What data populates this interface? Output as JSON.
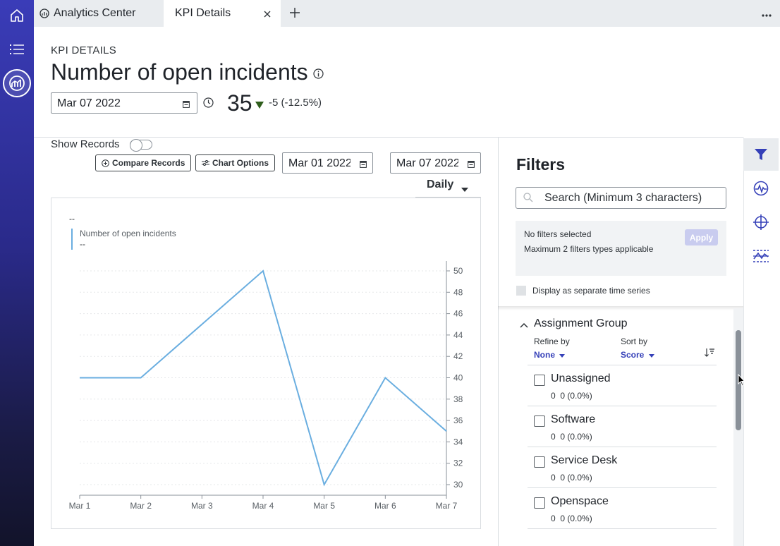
{
  "tabs": [
    {
      "label": "Analytics Center",
      "icon": "analytics-icon"
    },
    {
      "label": "KPI Details",
      "close_icon": "close-icon"
    }
  ],
  "header": {
    "section_label": "KPI DETAILS",
    "title": "Number of open incidents",
    "date": "Mar 07 2022",
    "value": "35",
    "delta": "-5 (-12.5%)",
    "trend_color": "#2e5e1c"
  },
  "toolbar": {
    "show_records": "Show Records",
    "compare_records": "Compare Records",
    "chart_options": "Chart Options",
    "range_start": "Mar 01 2022",
    "range_end": "Mar 07 2022",
    "interval": "Daily"
  },
  "chart_data": {
    "type": "line",
    "title": "--",
    "legend": [
      {
        "name": "Number of open incidents",
        "sub": "--"
      }
    ],
    "categories": [
      "Mar 1",
      "Mar 2",
      "Mar 3",
      "Mar 4",
      "Mar 5",
      "Mar 6",
      "Mar 7"
    ],
    "series": [
      {
        "name": "Number of open incidents",
        "values": [
          40,
          40,
          45,
          50,
          30,
          40,
          35
        ],
        "color": "#6aaee0"
      }
    ],
    "ylim": [
      30,
      50
    ],
    "yticks": [
      30,
      32,
      34,
      36,
      38,
      40,
      42,
      44,
      46,
      48,
      50
    ],
    "y_axis_side": "right",
    "grid": true
  },
  "filters": {
    "title": "Filters",
    "search_placeholder": "Search (Minimum 3 characters)",
    "no_filters": "No filters selected",
    "max_filters": "Maximum 2 filters types applicable",
    "apply": "Apply",
    "separate_series": "Display as separate time series",
    "group": {
      "title": "Assignment Group",
      "refine_label": "Refine by",
      "refine_value": "None",
      "sort_label": "Sort by",
      "sort_value": "Score",
      "items": [
        {
          "name": "Unassigned",
          "count": "0",
          "pct": "0 (0.0%)"
        },
        {
          "name": "Software",
          "count": "0",
          "pct": "0 (0.0%)"
        },
        {
          "name": "Service Desk",
          "count": "0",
          "pct": "0 (0.0%)"
        },
        {
          "name": "Openspace",
          "count": "0",
          "pct": "0 (0.0%)"
        }
      ]
    }
  },
  "colors": {
    "accent": "#3540b8",
    "rail_top": "#3a3cb8",
    "apply_disabled": "#c9ccef"
  }
}
